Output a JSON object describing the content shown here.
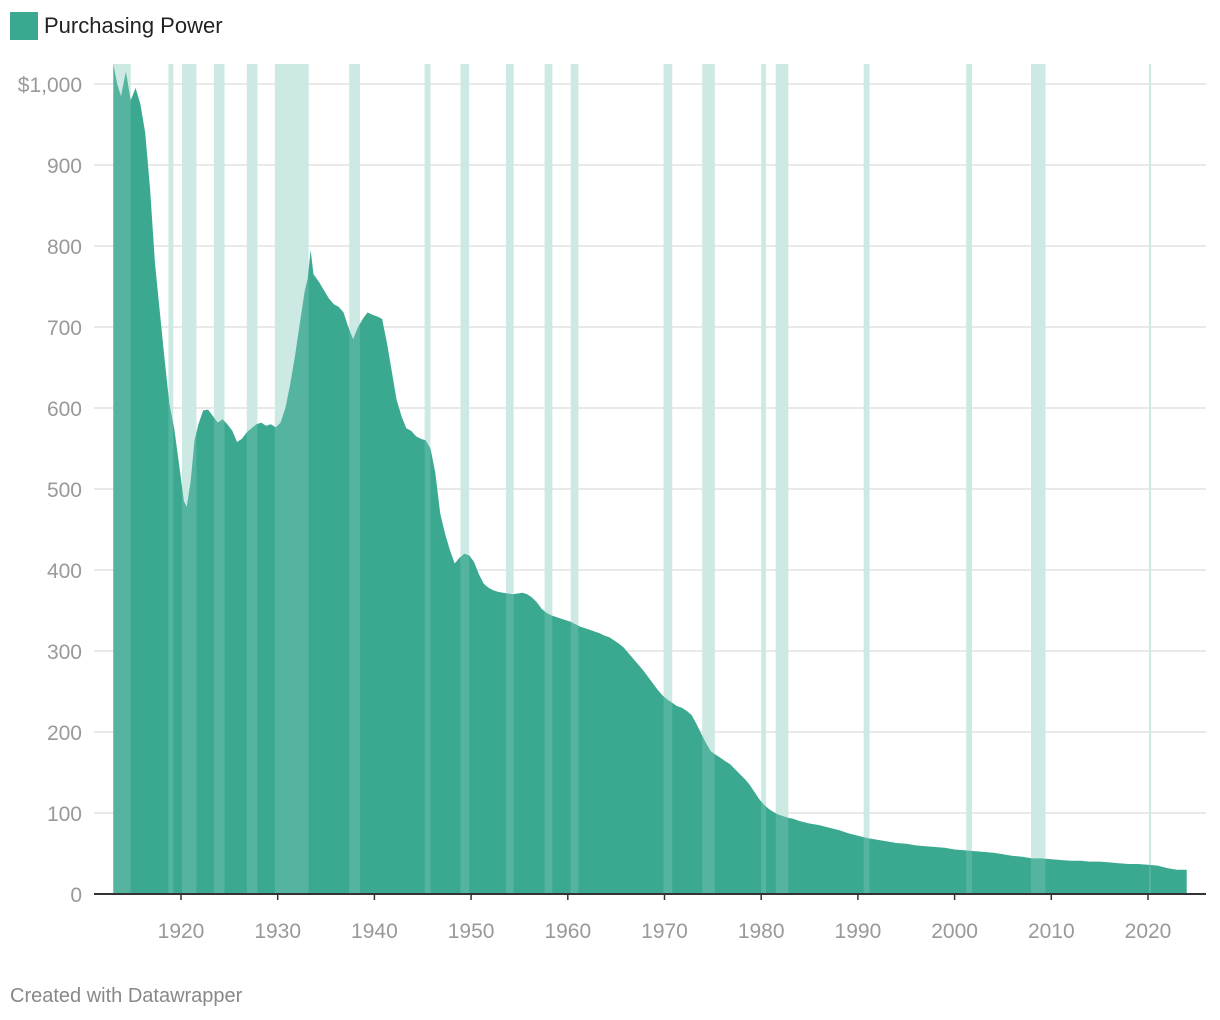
{
  "legend": {
    "label": "Purchasing Power",
    "color": "#3aa990"
  },
  "footer": {
    "credit": "Created with Datawrapper"
  },
  "colors": {
    "area": "#3aa990",
    "recession": "#cde9e3",
    "grid": "#e2e2e2",
    "axis": "#333333"
  },
  "chart_data": {
    "type": "area",
    "title": "",
    "series": [
      {
        "name": "Purchasing Power",
        "points": [
          [
            1913.0,
            1025
          ],
          [
            1913.4,
            1000
          ],
          [
            1913.8,
            985
          ],
          [
            1914.3,
            1015
          ],
          [
            1914.8,
            980
          ],
          [
            1915.3,
            995
          ],
          [
            1915.8,
            975
          ],
          [
            1916.3,
            940
          ],
          [
            1916.8,
            870
          ],
          [
            1917.3,
            780
          ],
          [
            1917.8,
            720
          ],
          [
            1918.3,
            660
          ],
          [
            1918.8,
            605
          ],
          [
            1919.3,
            575
          ],
          [
            1919.8,
            530
          ],
          [
            1920.3,
            485
          ],
          [
            1920.6,
            478
          ],
          [
            1921.0,
            510
          ],
          [
            1921.4,
            560
          ],
          [
            1921.8,
            580
          ],
          [
            1922.3,
            597
          ],
          [
            1922.8,
            598
          ],
          [
            1923.3,
            590
          ],
          [
            1923.8,
            582
          ],
          [
            1924.3,
            586
          ],
          [
            1924.8,
            580
          ],
          [
            1925.3,
            572
          ],
          [
            1925.8,
            558
          ],
          [
            1926.3,
            562
          ],
          [
            1926.8,
            570
          ],
          [
            1927.3,
            575
          ],
          [
            1927.8,
            580
          ],
          [
            1928.3,
            582
          ],
          [
            1928.8,
            578
          ],
          [
            1929.3,
            580
          ],
          [
            1929.8,
            576
          ],
          [
            1930.3,
            582
          ],
          [
            1930.8,
            600
          ],
          [
            1931.3,
            630
          ],
          [
            1931.8,
            665
          ],
          [
            1932.3,
            705
          ],
          [
            1932.8,
            745
          ],
          [
            1933.1,
            760
          ],
          [
            1933.4,
            795
          ],
          [
            1933.7,
            765
          ],
          [
            1934.3,
            755
          ],
          [
            1934.8,
            745
          ],
          [
            1935.3,
            735
          ],
          [
            1935.8,
            728
          ],
          [
            1936.3,
            725
          ],
          [
            1936.8,
            718
          ],
          [
            1937.3,
            700
          ],
          [
            1937.8,
            685
          ],
          [
            1938.3,
            700
          ],
          [
            1938.8,
            710
          ],
          [
            1939.3,
            718
          ],
          [
            1939.8,
            715
          ],
          [
            1940.3,
            713
          ],
          [
            1940.8,
            710
          ],
          [
            1941.3,
            680
          ],
          [
            1941.8,
            645
          ],
          [
            1942.3,
            610
          ],
          [
            1942.8,
            590
          ],
          [
            1943.3,
            575
          ],
          [
            1943.8,
            572
          ],
          [
            1944.3,
            565
          ],
          [
            1944.8,
            562
          ],
          [
            1945.3,
            560
          ],
          [
            1945.8,
            550
          ],
          [
            1946.3,
            520
          ],
          [
            1946.8,
            470
          ],
          [
            1947.3,
            445
          ],
          [
            1947.8,
            425
          ],
          [
            1948.3,
            408
          ],
          [
            1948.8,
            415
          ],
          [
            1949.3,
            420
          ],
          [
            1949.8,
            418
          ],
          [
            1950.3,
            410
          ],
          [
            1950.8,
            395
          ],
          [
            1951.3,
            383
          ],
          [
            1951.8,
            378
          ],
          [
            1952.3,
            375
          ],
          [
            1952.8,
            373
          ],
          [
            1953.3,
            372
          ],
          [
            1953.8,
            371
          ],
          [
            1954.3,
            370
          ],
          [
            1954.8,
            371
          ],
          [
            1955.3,
            372
          ],
          [
            1955.8,
            370
          ],
          [
            1956.3,
            366
          ],
          [
            1956.8,
            360
          ],
          [
            1957.3,
            352
          ],
          [
            1957.8,
            347
          ],
          [
            1958.3,
            344
          ],
          [
            1958.8,
            342
          ],
          [
            1959.3,
            340
          ],
          [
            1959.8,
            338
          ],
          [
            1960.3,
            336
          ],
          [
            1960.8,
            333
          ],
          [
            1961.3,
            330
          ],
          [
            1961.8,
            328
          ],
          [
            1962.3,
            326
          ],
          [
            1962.8,
            324
          ],
          [
            1963.3,
            322
          ],
          [
            1963.8,
            319
          ],
          [
            1964.3,
            317
          ],
          [
            1964.8,
            313
          ],
          [
            1965.3,
            309
          ],
          [
            1965.8,
            304
          ],
          [
            1966.3,
            297
          ],
          [
            1966.8,
            290
          ],
          [
            1967.3,
            283
          ],
          [
            1967.8,
            276
          ],
          [
            1968.3,
            268
          ],
          [
            1968.8,
            260
          ],
          [
            1969.3,
            252
          ],
          [
            1969.8,
            245
          ],
          [
            1970.3,
            240
          ],
          [
            1970.8,
            236
          ],
          [
            1971.3,
            232
          ],
          [
            1971.8,
            230
          ],
          [
            1972.3,
            226
          ],
          [
            1972.8,
            221
          ],
          [
            1973.3,
            210
          ],
          [
            1973.8,
            198
          ],
          [
            1974.3,
            186
          ],
          [
            1974.8,
            176
          ],
          [
            1975.3,
            172
          ],
          [
            1975.8,
            168
          ],
          [
            1976.3,
            164
          ],
          [
            1976.8,
            160
          ],
          [
            1977.3,
            154
          ],
          [
            1977.8,
            148
          ],
          [
            1978.3,
            142
          ],
          [
            1978.8,
            135
          ],
          [
            1979.3,
            126
          ],
          [
            1979.8,
            117
          ],
          [
            1980.3,
            110
          ],
          [
            1980.8,
            105
          ],
          [
            1981.3,
            101
          ],
          [
            1981.8,
            98
          ],
          [
            1982.3,
            96
          ],
          [
            1982.8,
            94
          ],
          [
            1983.3,
            93
          ],
          [
            1984.0,
            90
          ],
          [
            1985.0,
            87
          ],
          [
            1986.0,
            85
          ],
          [
            1987.0,
            82
          ],
          [
            1988.0,
            79
          ],
          [
            1989.0,
            75
          ],
          [
            1990.0,
            72
          ],
          [
            1991.0,
            69
          ],
          [
            1992.0,
            67
          ],
          [
            1993.0,
            65
          ],
          [
            1994.0,
            63
          ],
          [
            1995.0,
            62
          ],
          [
            1996.0,
            60
          ],
          [
            1997.0,
            59
          ],
          [
            1998.0,
            58
          ],
          [
            1999.0,
            57
          ],
          [
            2000.0,
            55
          ],
          [
            2001.0,
            54
          ],
          [
            2002.0,
            53
          ],
          [
            2003.0,
            52
          ],
          [
            2004.0,
            51
          ],
          [
            2005.0,
            49
          ],
          [
            2006.0,
            47
          ],
          [
            2007.0,
            46
          ],
          [
            2008.0,
            44
          ],
          [
            2009.0,
            44
          ],
          [
            2010.0,
            43
          ],
          [
            2011.0,
            42
          ],
          [
            2012.0,
            41
          ],
          [
            2013.0,
            41
          ],
          [
            2014.0,
            40
          ],
          [
            2015.0,
            40
          ],
          [
            2016.0,
            39
          ],
          [
            2017.0,
            38
          ],
          [
            2018.0,
            37
          ],
          [
            2019.0,
            37
          ],
          [
            2020.0,
            36
          ],
          [
            2021.0,
            35
          ],
          [
            2022.0,
            32
          ],
          [
            2023.0,
            30
          ],
          [
            2024.0,
            30
          ]
        ]
      }
    ],
    "recessions": [
      [
        1913.0,
        1914.8
      ],
      [
        1918.7,
        1919.2
      ],
      [
        1920.1,
        1921.6
      ],
      [
        1923.4,
        1924.5
      ],
      [
        1926.8,
        1927.9
      ],
      [
        1929.7,
        1933.2
      ],
      [
        1937.4,
        1938.5
      ],
      [
        1945.2,
        1945.8
      ],
      [
        1948.9,
        1949.8
      ],
      [
        1953.6,
        1954.4
      ],
      [
        1957.6,
        1958.4
      ],
      [
        1960.3,
        1961.1
      ],
      [
        1969.9,
        1970.8
      ],
      [
        1973.9,
        1975.2
      ],
      [
        1980.0,
        1980.5
      ],
      [
        1981.5,
        1982.8
      ],
      [
        1990.6,
        1991.2
      ],
      [
        2001.2,
        2001.8
      ],
      [
        2007.9,
        2009.4
      ],
      [
        2020.1,
        2020.3
      ]
    ],
    "x_range": [
      1912.8,
      2025.2
    ],
    "y_range": [
      0,
      1025
    ],
    "x_ticks": [
      1920,
      1930,
      1940,
      1950,
      1960,
      1970,
      1980,
      1990,
      2000,
      2010,
      2020
    ],
    "y_ticks": [
      0,
      100,
      200,
      300,
      400,
      500,
      600,
      700,
      800,
      900,
      1000
    ],
    "x_tick_labels": [
      "1920",
      "1930",
      "1940",
      "1950",
      "1960",
      "1970",
      "1980",
      "1990",
      "2000",
      "2010",
      "2020"
    ],
    "y_tick_labels": [
      "0",
      "100",
      "200",
      "300",
      "400",
      "500",
      "600",
      "700",
      "800",
      "900",
      "$1,000"
    ],
    "grid": true,
    "legend_position": "top-left"
  }
}
